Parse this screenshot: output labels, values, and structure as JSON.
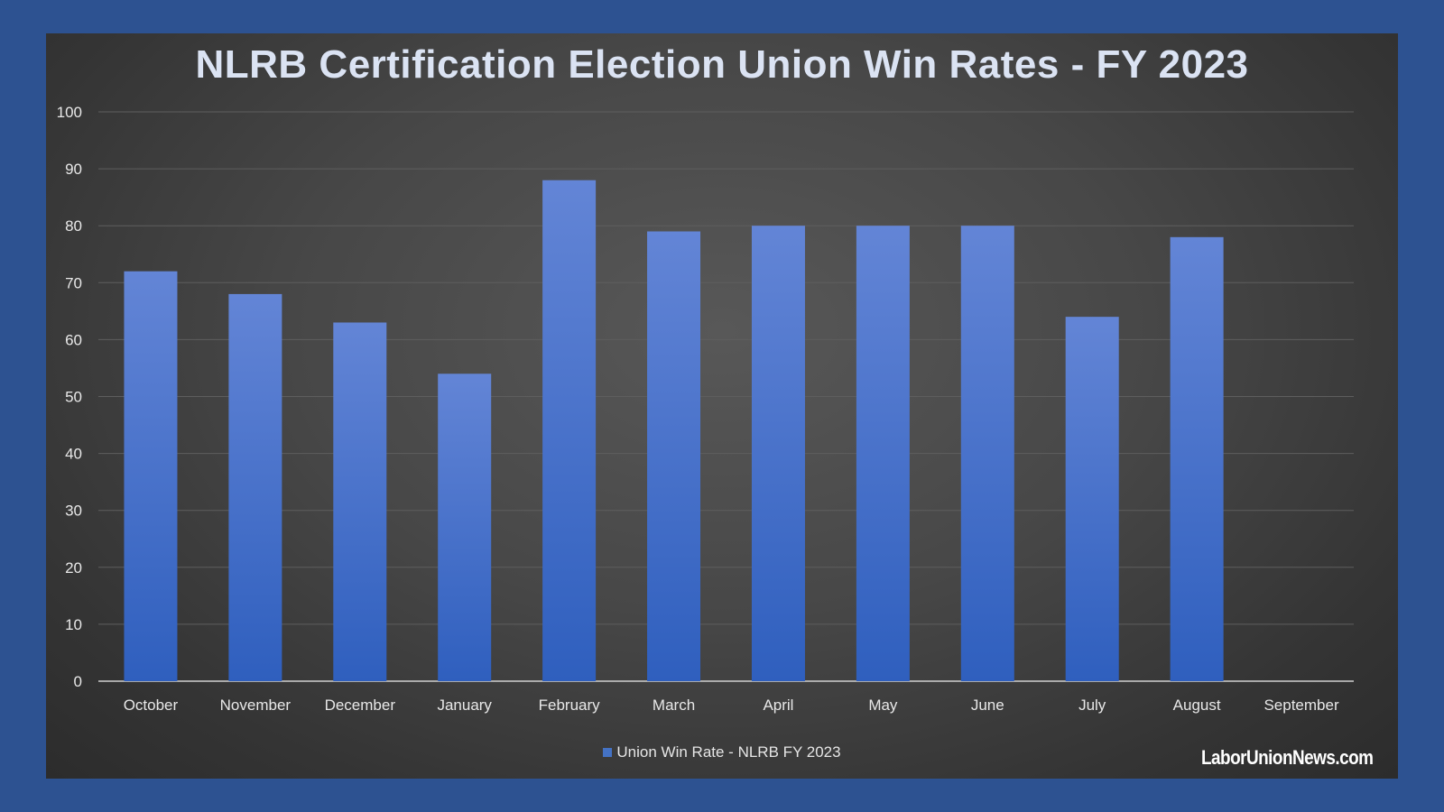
{
  "chart_data": {
    "type": "bar",
    "title": "NLRB Certification Election Union Win Rates - FY 2023",
    "categories": [
      "October",
      "November",
      "December",
      "January",
      "February",
      "March",
      "April",
      "May",
      "June",
      "July",
      "August",
      "September"
    ],
    "series": [
      {
        "name": "Union Win Rate - NLRB FY 2023",
        "values": [
          72,
          68,
          63,
          54,
          88,
          79,
          80,
          80,
          80,
          64,
          78,
          null
        ]
      }
    ],
    "ylim": [
      0,
      100
    ],
    "yticks": [
      0,
      10,
      20,
      30,
      40,
      50,
      60,
      70,
      80,
      90,
      100
    ],
    "grid": true,
    "legend_position": "bottom"
  },
  "colors": {
    "bar_top": "#6385d6",
    "bar_bottom": "#2f5fbe",
    "legend_swatch": "#4472c4",
    "gridline": "#5e5e5e",
    "axis_label": "#e8e8e8"
  },
  "branding": {
    "site": "LaborUnionNews.com"
  }
}
